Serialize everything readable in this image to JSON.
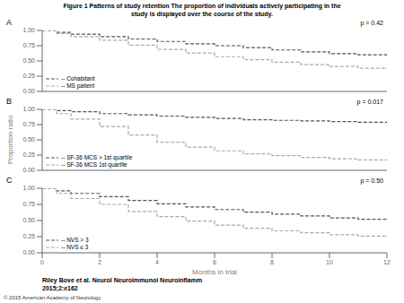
{
  "title": "Figure 1 Patterns of study retention The proportion of individuals actively participating in the\nstudy is displayed over the course of the study.",
  "annotations": [
    "Riley Bove et al. Neurol Neuroimmunol Neuroinflamm\n2015;2:e162",
    "© 2015 American Academy of Neurology"
  ],
  "chart_data": [
    {
      "type": "line",
      "title": "A",
      "annotations": [
        "p = 0.42"
      ],
      "legend": "lower left",
      "tick_labels": "y",
      "x": [
        0,
        0.5,
        1,
        2,
        3,
        4,
        5,
        6,
        7,
        8,
        9,
        10,
        11,
        12
      ],
      "series": [
        {
          "name": "-- Cohabitant",
          "color": "#555555",
          "line_style": "dashed",
          "values": [
            1.0,
            0.97,
            0.94,
            0.9,
            0.86,
            0.82,
            0.78,
            0.75,
            0.72,
            0.68,
            0.65,
            0.62,
            0.6,
            0.58
          ]
        },
        {
          "name": "-- MS patient",
          "color": "#aaaaaa",
          "line_style": "dashed",
          "values": [
            1.0,
            0.95,
            0.9,
            0.84,
            0.76,
            0.69,
            0.63,
            0.57,
            0.52,
            0.48,
            0.44,
            0.41,
            0.38,
            0.36
          ]
        }
      ],
      "xlim": [
        0,
        12
      ],
      "xticks": [
        0,
        2,
        4,
        6,
        8,
        10,
        12
      ],
      "ylim": [
        0,
        1
      ],
      "yticks": [
        {
          "value": 0,
          "label": "0.00"
        },
        0.25,
        {
          "value": 0.5,
          "label": "0.50"
        },
        0.75,
        {
          "value": 1,
          "label": "1.00"
        }
      ]
    },
    {
      "type": "line",
      "title": "B",
      "annotations": [
        "p = 0.017"
      ],
      "legend": "lower left",
      "tick_labels": "y",
      "y_label": "Proportion ratio",
      "x": [
        0,
        0.5,
        1,
        2,
        3,
        4,
        5,
        6,
        7,
        8,
        9,
        10,
        11,
        12
      ],
      "series": [
        {
          "name": "-- SF-36 MCS > 1st quartile",
          "color": "#555555",
          "line_style": "dashed",
          "values": [
            1.0,
            0.98,
            0.96,
            0.93,
            0.91,
            0.89,
            0.87,
            0.85,
            0.83,
            0.82,
            0.81,
            0.8,
            0.79,
            0.79
          ]
        },
        {
          "name": "-- SF-36 MCS 1st quartile",
          "color": "#aaaaaa",
          "line_style": "dashed",
          "values": [
            1.0,
            0.93,
            0.84,
            0.72,
            0.58,
            0.46,
            0.38,
            0.32,
            0.27,
            0.24,
            0.21,
            0.19,
            0.17,
            0.16
          ]
        }
      ],
      "xlim": [
        0,
        12
      ],
      "xticks": [
        0,
        2,
        4,
        6,
        8,
        10,
        12
      ],
      "ylim": [
        0,
        1
      ],
      "yticks": [
        {
          "value": 0,
          "label": "0.00"
        },
        0.25,
        {
          "value": 0.5,
          "label": "0.50"
        },
        0.75,
        {
          "value": 1,
          "label": "1.00"
        }
      ]
    },
    {
      "type": "line",
      "title": "C",
      "annotations": [
        "p = 0.50"
      ],
      "legend": "lower left",
      "x_label": "Months in trial",
      "x": [
        0,
        0.5,
        1,
        2,
        3,
        4,
        5,
        6,
        7,
        8,
        9,
        10,
        11,
        12
      ],
      "series": [
        {
          "name": "-- NVS > 3",
          "color": "#555555",
          "line_style": "dashed",
          "values": [
            1.0,
            0.96,
            0.92,
            0.87,
            0.81,
            0.76,
            0.71,
            0.67,
            0.63,
            0.6,
            0.57,
            0.54,
            0.52,
            0.5
          ]
        },
        {
          "name": "-- NVS ≤ 3",
          "color": "#aaaaaa",
          "line_style": "dashed",
          "values": [
            1.0,
            0.92,
            0.84,
            0.75,
            0.64,
            0.56,
            0.49,
            0.43,
            0.38,
            0.34,
            0.31,
            0.28,
            0.26,
            0.24
          ]
        }
      ],
      "xlim": [
        0,
        12
      ],
      "xticks": [
        0,
        2,
        4,
        6,
        8,
        10,
        12
      ],
      "ylim": [
        0,
        1
      ],
      "yticks": [
        {
          "value": 0,
          "label": "0.00"
        },
        0.25,
        {
          "value": 0.5,
          "label": "0.50"
        },
        0.75,
        {
          "value": 1,
          "label": "1.00"
        }
      ]
    }
  ]
}
